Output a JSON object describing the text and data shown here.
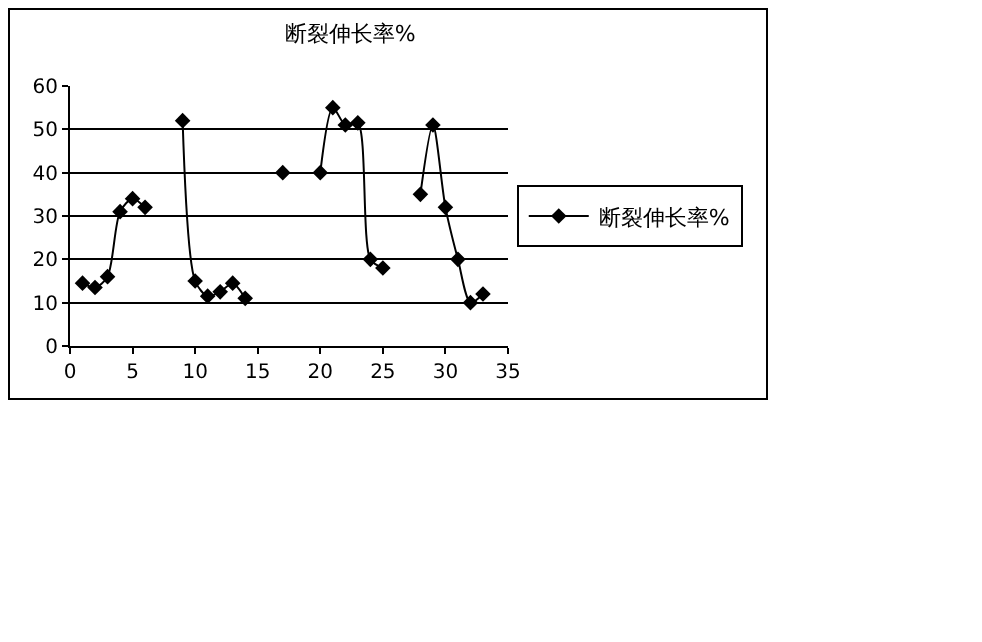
{
  "chart_data": {
    "type": "line",
    "title": "断裂伸长率%",
    "x": [
      1,
      2,
      3,
      4,
      5,
      6,
      7,
      8,
      9,
      10,
      11,
      12,
      13,
      14,
      15,
      16,
      17,
      18,
      19,
      20,
      21,
      22,
      23,
      24,
      25,
      26,
      27,
      28,
      29,
      30,
      31,
      32,
      33
    ],
    "series": [
      {
        "name": "断裂伸长率%",
        "color": "#000000",
        "values": [
          14.5,
          13.5,
          16,
          31,
          34,
          32,
          null,
          null,
          52,
          15,
          11.5,
          12.5,
          14.5,
          11,
          null,
          null,
          40,
          null,
          null,
          40,
          55,
          51,
          51.5,
          20,
          18,
          null,
          null,
          35,
          51,
          32,
          20,
          10,
          12
        ]
      }
    ],
    "xlim": [
      0,
      35
    ],
    "xticks": [
      0,
      5,
      10,
      15,
      20,
      25,
      30,
      35
    ],
    "ylim": [
      0,
      60
    ],
    "yticks": [
      0,
      10,
      20,
      30,
      40,
      50,
      60
    ],
    "grid": "y",
    "legend": "right",
    "marker": "diamond",
    "line_style": "solid"
  }
}
